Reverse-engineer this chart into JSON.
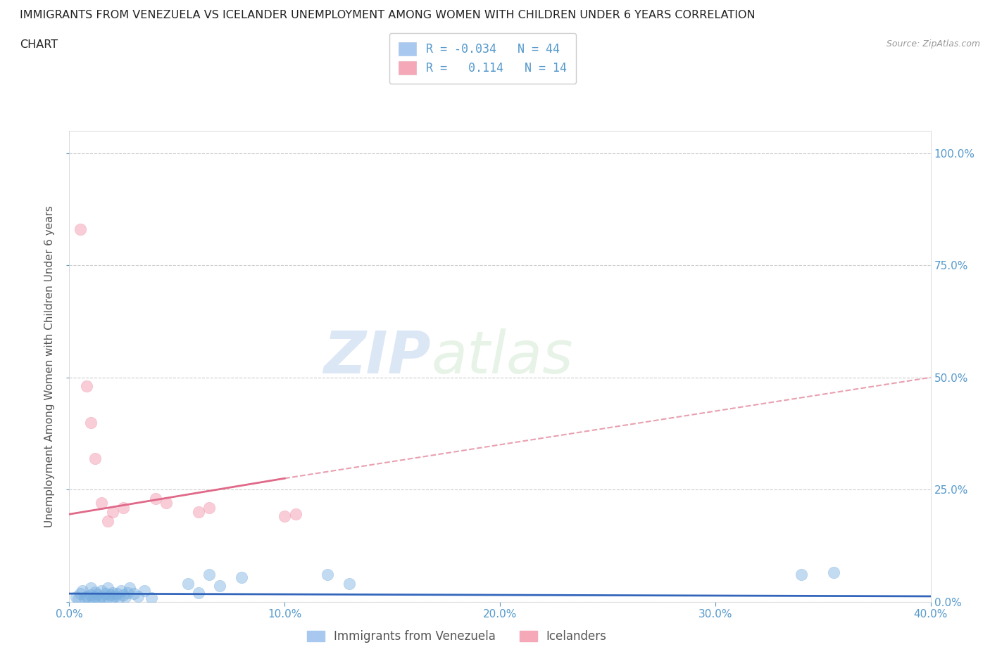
{
  "title_line1": "IMMIGRANTS FROM VENEZUELA VS ICELANDER UNEMPLOYMENT AMONG WOMEN WITH CHILDREN UNDER 6 YEARS CORRELATION",
  "title_line2": "CHART",
  "source": "Source: ZipAtlas.com",
  "ylabel": "Unemployment Among Women with Children Under 6 years",
  "xlim": [
    0.0,
    0.4
  ],
  "ylim": [
    0.0,
    1.05
  ],
  "yticks": [
    0.0,
    0.25,
    0.5,
    0.75,
    1.0
  ],
  "ytick_labels": [
    "0.0%",
    "25.0%",
    "50.0%",
    "75.0%",
    "100.0%"
  ],
  "xticks": [
    0.0,
    0.1,
    0.2,
    0.3,
    0.4
  ],
  "xtick_labels": [
    "0.0%",
    "10.0%",
    "20.0%",
    "30.0%",
    "40.0%"
  ],
  "watermark_zip": "ZIP",
  "watermark_atlas": "atlas",
  "blue_scatter": [
    [
      0.003,
      0.01
    ],
    [
      0.004,
      0.005
    ],
    [
      0.005,
      0.018
    ],
    [
      0.006,
      0.025
    ],
    [
      0.007,
      0.008
    ],
    [
      0.008,
      0.012
    ],
    [
      0.009,
      0.005
    ],
    [
      0.01,
      0.03
    ],
    [
      0.01,
      0.015
    ],
    [
      0.011,
      0.008
    ],
    [
      0.012,
      0.022
    ],
    [
      0.012,
      0.01
    ],
    [
      0.013,
      0.016
    ],
    [
      0.014,
      0.005
    ],
    [
      0.015,
      0.025
    ],
    [
      0.015,
      0.012
    ],
    [
      0.016,
      0.008
    ],
    [
      0.017,
      0.018
    ],
    [
      0.018,
      0.03
    ],
    [
      0.018,
      0.01
    ],
    [
      0.019,
      0.015
    ],
    [
      0.02,
      0.008
    ],
    [
      0.02,
      0.02
    ],
    [
      0.021,
      0.012
    ],
    [
      0.022,
      0.018
    ],
    [
      0.023,
      0.008
    ],
    [
      0.024,
      0.025
    ],
    [
      0.025,
      0.015
    ],
    [
      0.026,
      0.01
    ],
    [
      0.027,
      0.02
    ],
    [
      0.028,
      0.03
    ],
    [
      0.03,
      0.018
    ],
    [
      0.032,
      0.012
    ],
    [
      0.035,
      0.025
    ],
    [
      0.038,
      0.008
    ],
    [
      0.055,
      0.04
    ],
    [
      0.06,
      0.02
    ],
    [
      0.065,
      0.06
    ],
    [
      0.07,
      0.035
    ],
    [
      0.08,
      0.055
    ],
    [
      0.12,
      0.06
    ],
    [
      0.13,
      0.04
    ],
    [
      0.34,
      0.06
    ],
    [
      0.355,
      0.065
    ]
  ],
  "pink_scatter": [
    [
      0.005,
      0.83
    ],
    [
      0.008,
      0.48
    ],
    [
      0.01,
      0.4
    ],
    [
      0.012,
      0.32
    ],
    [
      0.015,
      0.22
    ],
    [
      0.018,
      0.18
    ],
    [
      0.02,
      0.2
    ],
    [
      0.025,
      0.21
    ],
    [
      0.04,
      0.23
    ],
    [
      0.045,
      0.22
    ],
    [
      0.06,
      0.2
    ],
    [
      0.065,
      0.21
    ],
    [
      0.1,
      0.19
    ],
    [
      0.105,
      0.195
    ]
  ],
  "blue_trendline_solid": {
    "x": [
      0.0,
      0.4
    ],
    "y": [
      0.018,
      0.012
    ]
  },
  "pink_trendline_solid": {
    "x": [
      0.0,
      0.1
    ],
    "y": [
      0.195,
      0.275
    ]
  },
  "pink_trendline_dashed": {
    "x": [
      0.1,
      0.4
    ],
    "y": [
      0.275,
      0.5
    ]
  },
  "dot_color_blue": "#7ab0e0",
  "dot_color_pink": "#f090a8",
  "trendline_color_blue": "#3366bb",
  "trendline_color_pink": "#e06888",
  "trendline_dashed_color": "#e8a0b0",
  "background_color": "#ffffff",
  "grid_color": "#cccccc",
  "title_color": "#222222",
  "axis_color": "#5599cc",
  "text_color": "#5599cc"
}
